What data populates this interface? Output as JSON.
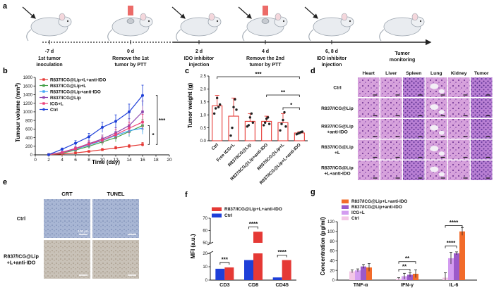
{
  "panel_labels": {
    "a": "a",
    "b": "b",
    "c": "c",
    "d": "d",
    "e": "e",
    "f": "f",
    "g": "g"
  },
  "timeline": [
    {
      "day": "-7 d",
      "desc": [
        "1st tumor",
        "inoculation"
      ]
    },
    {
      "day": "0 d",
      "desc": [
        "Remove the 1st",
        "tumor by PTT"
      ]
    },
    {
      "day": "2 d",
      "desc": [
        "IDO inhibitor",
        "injection"
      ]
    },
    {
      "day": "4 d",
      "desc": [
        "Remove the 2nd",
        "tumor by PTT"
      ]
    },
    {
      "day": "6, 8 d",
      "desc": [
        "IDO inhibitor",
        "injection"
      ]
    },
    {
      "day": "",
      "desc": [
        "Tumor",
        "monitoring"
      ]
    }
  ],
  "colors": {
    "red": "#e53935",
    "green": "#43a047",
    "skyblue": "#42a5f5",
    "purple": "#8e44ad",
    "pink": "#ec407a",
    "blue": "#1e3fd8",
    "orange": "#f26b2a",
    "violet": "#9b59c9",
    "lavender": "#d39cf0",
    "lightpink": "#f3c6e6",
    "he": "#c98ad0",
    "ihc": "#9fb0d1"
  },
  "chart_data": [
    {
      "type": "line",
      "panel": "b",
      "xlabel": "Time (day)",
      "ylabel": "Tumour volume (mm³)",
      "ylabel_base": "Tumour volume (mm",
      "ylabel_sup": "3",
      "ylabel_close": ")",
      "xlim": [
        0,
        20
      ],
      "ylim": [
        0,
        1800
      ],
      "xticks": [
        0,
        2,
        4,
        6,
        8,
        10,
        12,
        14,
        16,
        18,
        20
      ],
      "yticks": [
        0,
        200,
        400,
        600,
        800,
        1000,
        1200,
        1400,
        1600,
        1800
      ],
      "x": [
        2,
        4,
        6,
        8,
        10,
        12,
        14,
        16
      ],
      "series": [
        {
          "name": "R837/ICG@Lip+L+anti-IDO",
          "color": "#e53935",
          "values": [
            5,
            20,
            45,
            80,
            120,
            160,
            200,
            240
          ],
          "err": [
            5,
            10,
            15,
            20,
            30,
            35,
            40,
            45
          ]
        },
        {
          "name": "R837/ICG@Lip+L",
          "color": "#43a047",
          "values": [
            5,
            40,
            110,
            200,
            300,
            400,
            540,
            680
          ],
          "err": [
            5,
            20,
            40,
            60,
            80,
            100,
            120,
            140
          ]
        },
        {
          "name": "R837/ICG@Lip+anti-IDO",
          "color": "#42a5f5",
          "values": [
            5,
            50,
            130,
            230,
            330,
            450,
            560,
            620
          ],
          "err": [
            5,
            20,
            40,
            60,
            80,
            100,
            120,
            140
          ]
        },
        {
          "name": "R837/ICG@Lip",
          "color": "#8e44ad",
          "values": [
            5,
            60,
            150,
            260,
            370,
            510,
            680,
            1000
          ],
          "err": [
            5,
            25,
            45,
            70,
            90,
            120,
            160,
            250
          ]
        },
        {
          "name": "ICG+L",
          "color": "#ec407a",
          "values": [
            5,
            50,
            140,
            250,
            340,
            470,
            620,
            760
          ],
          "err": [
            5,
            20,
            40,
            60,
            80,
            110,
            140,
            180
          ]
        },
        {
          "name": "Ctrl",
          "color": "#1e3fd8",
          "values": [
            5,
            130,
            270,
            420,
            640,
            780,
            1000,
            1380
          ],
          "err": [
            5,
            30,
            60,
            80,
            120,
            150,
            180,
            240
          ]
        }
      ],
      "sig": [
        "*",
        "***"
      ]
    },
    {
      "type": "bar",
      "panel": "c",
      "ylabel": "Tumor weight (g)",
      "ylim": [
        0,
        2.5
      ],
      "yticks": [
        0.0,
        0.5,
        1.0,
        1.5,
        2.0,
        2.5
      ],
      "ytick_labels": [
        "0.0",
        "0.5",
        "1.0",
        "1.5",
        "2.0",
        "2.5"
      ],
      "categories": [
        "Ctrl",
        "Free ICG+L",
        "R837/ICG@Lip",
        "R837/ICG@Lip+anti-IDO",
        "R837/ICG@Lip+L",
        "R837/ICG@Lip+L+anti-IDO"
      ],
      "values": [
        1.35,
        0.95,
        0.75,
        0.75,
        0.7,
        0.3
      ],
      "err": [
        0.4,
        0.7,
        0.3,
        0.2,
        0.35,
        0.05
      ],
      "sig": [
        "***",
        "**",
        "*"
      ]
    },
    {
      "type": "bar",
      "panel": "f",
      "ylabel": "MFI (a.u.)",
      "categories": [
        "CD3",
        "CD8",
        "CD45"
      ],
      "series": [
        {
          "name": "R837/ICG@Lip+L+anti-IDO",
          "color": "#e53935",
          "values": [
            9.5,
            59,
            15
          ]
        },
        {
          "name": "Ctrl",
          "color": "#1e3fd8",
          "values": [
            8.5,
            15,
            2
          ]
        }
      ],
      "ylim_low": [
        0,
        20
      ],
      "ylim_high": [
        50,
        70
      ],
      "yticks_low": [
        0,
        10,
        20
      ],
      "yticks_high": [
        50,
        60,
        70
      ],
      "sig": [
        "***",
        "****",
        "****"
      ]
    },
    {
      "type": "bar",
      "panel": "g",
      "ylabel": "Concentration (pg/ml)",
      "categories": [
        "TNF-α",
        "IFN-γ",
        "IL-6"
      ],
      "series": [
        {
          "name": "Ctrl",
          "color": "#f3c6e6",
          "values": [
            18,
            3,
            5
          ]
        },
        {
          "name": "ICG+L",
          "color": "#d39cf0",
          "values": [
            20,
            8,
            45
          ]
        },
        {
          "name": "R837/ICG@Lip+anti-IDO",
          "color": "#9b59c9",
          "values": [
            28,
            11,
            55
          ]
        },
        {
          "name": "R837/ICG@Lip+L+anti-IDO",
          "color": "#f26b2a",
          "values": [
            26,
            13,
            100
          ]
        }
      ],
      "err": [
        [
          3,
          3,
          4,
          8
        ],
        [
          2,
          6,
          4,
          8
        ],
        [
          10,
          12,
          3,
          8
        ]
      ],
      "ylim": [
        0,
        120
      ],
      "yticks": [
        0,
        20,
        40,
        60,
        80,
        100,
        120
      ],
      "sig": [
        "**",
        "**",
        "****",
        "****"
      ]
    }
  ],
  "panel_d": {
    "cols": [
      "Heart",
      "Liver",
      "Spleen",
      "Lung",
      "Kidney",
      "Tumor"
    ],
    "rows": [
      [
        "Ctrl"
      ],
      [
        "R837/ICG@Lip"
      ],
      [
        "R837/ICG@Lip",
        "+anti-IDO"
      ],
      [
        "R837/ICG@Lip",
        "+L"
      ],
      [
        "R837/ICG@Lip",
        "+L+anti-IDO"
      ]
    ]
  },
  "panel_e": {
    "cols": [
      "CRT",
      "TUNEL"
    ],
    "rows": [
      [
        "Ctrl"
      ],
      [
        "R837/ICG@Lip",
        "+L+anti-IDO"
      ]
    ],
    "scale_label": "100 μm"
  }
}
